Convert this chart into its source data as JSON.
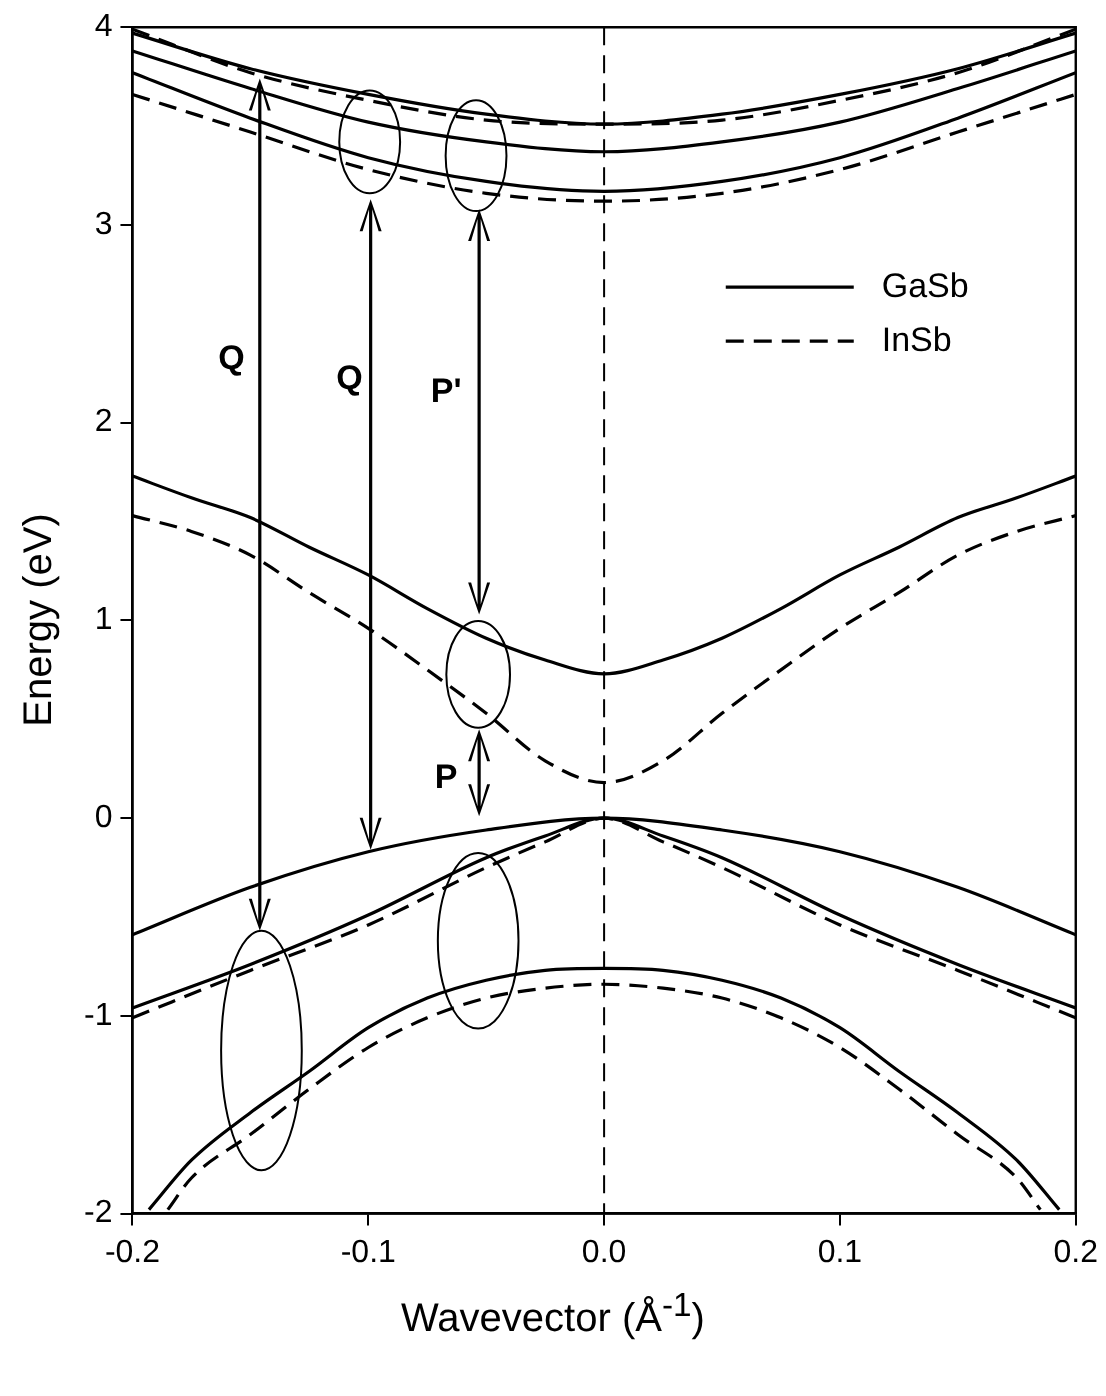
{
  "chart_data": {
    "type": "line",
    "xlabel": "Wavevector (Å$^{-1}$)",
    "ylabel": "Energy (eV)",
    "xlim": [
      -0.2,
      0.2
    ],
    "xticks": [
      -0.2,
      -0.1,
      {
        "value": 0,
        "label": "0.0"
      },
      0.1,
      0.2
    ],
    "ylim": [
      -2,
      4
    ],
    "yticks": [
      -2,
      -1,
      0,
      1,
      2,
      3,
      4
    ],
    "grid": false,
    "legend": "top right",
    "ref_lines": [
      {
        "axis": "x",
        "value": 0,
        "color": "#000000",
        "line_style": "dashed"
      }
    ],
    "annotations": [
      "Q",
      "Q",
      "P'",
      "P"
    ],
    "series": [
      {
        "name": "GaSb",
        "color": "#000000",
        "line_style": "solid",
        "x": [
          -0.2,
          -0.175,
          -0.15,
          -0.125,
          -0.1,
          -0.075,
          -0.05,
          -0.025,
          0,
          0.025,
          0.05,
          0.075,
          0.1,
          0.125,
          0.15,
          0.175,
          0.2
        ],
        "values": [
          1.73,
          1.62,
          1.52,
          1.37,
          1.23,
          1.06,
          0.91,
          0.8,
          0.73,
          0.8,
          0.91,
          1.06,
          1.23,
          1.37,
          1.52,
          1.62,
          1.73
        ]
      },
      {
        "color": "#000000",
        "line_style": "solid",
        "x": [
          -0.2,
          -0.15,
          -0.1,
          -0.05,
          0,
          0.05,
          0.1,
          0.15,
          0.2
        ],
        "values": [
          -0.59,
          -0.35,
          -0.17,
          -0.06,
          0,
          -0.06,
          -0.17,
          -0.35,
          -0.59
        ]
      },
      {
        "color": "#000000",
        "line_style": "solid",
        "x": [
          -0.2,
          -0.15,
          -0.1,
          -0.05,
          -0.025,
          0,
          0.025,
          0.05,
          0.1,
          0.15,
          0.2
        ],
        "values": [
          -0.96,
          -0.74,
          -0.49,
          -0.2,
          -0.09,
          0,
          -0.09,
          -0.2,
          -0.49,
          -0.74,
          -0.96
        ]
      },
      {
        "color": "#000000",
        "line_style": "solid",
        "x": [
          -0.193,
          -0.175,
          -0.15,
          -0.125,
          -0.1,
          -0.075,
          -0.05,
          -0.025,
          0,
          0.025,
          0.05,
          0.075,
          0.1,
          0.125,
          0.15,
          0.175,
          0.193
        ],
        "values": [
          -1.98,
          -1.73,
          -1.49,
          -1.28,
          -1.06,
          -0.91,
          -0.82,
          -0.77,
          -0.76,
          -0.77,
          -0.82,
          -0.91,
          -1.06,
          -1.28,
          -1.49,
          -1.73,
          -1.98
        ]
      },
      {
        "color": "#000000",
        "line_style": "solid",
        "x": [
          -0.2,
          -0.15,
          -0.1,
          -0.05,
          0,
          0.05,
          0.1,
          0.15,
          0.2
        ],
        "values": [
          3.97,
          3.79,
          3.66,
          3.56,
          3.51,
          3.56,
          3.66,
          3.79,
          3.97
        ]
      },
      {
        "color": "#000000",
        "line_style": "solid",
        "x": [
          -0.2,
          -0.15,
          -0.1,
          -0.05,
          0,
          0.05,
          0.1,
          0.15,
          0.2
        ],
        "values": [
          3.88,
          3.69,
          3.52,
          3.42,
          3.37,
          3.42,
          3.52,
          3.69,
          3.88
        ]
      },
      {
        "color": "#000000",
        "line_style": "solid",
        "x": [
          -0.2,
          -0.15,
          -0.1,
          -0.05,
          0,
          0.05,
          0.1,
          0.15,
          0.2
        ],
        "values": [
          3.77,
          3.54,
          3.34,
          3.22,
          3.17,
          3.22,
          3.34,
          3.54,
          3.77
        ]
      },
      {
        "name": "InSb",
        "color": "#000000",
        "line_style": "dashed",
        "x": [
          -0.2,
          -0.175,
          -0.15,
          -0.125,
          -0.1,
          -0.075,
          -0.05,
          -0.025,
          0,
          0.025,
          0.05,
          0.075,
          0.1,
          0.125,
          0.15,
          0.175,
          0.2
        ],
        "values": [
          1.53,
          1.45,
          1.33,
          1.14,
          0.96,
          0.75,
          0.53,
          0.29,
          0.18,
          0.29,
          0.53,
          0.75,
          0.96,
          1.14,
          1.33,
          1.45,
          1.53
        ]
      },
      {
        "color": "#000000",
        "line_style": "dashed",
        "x": [
          -0.2,
          -0.15,
          -0.1,
          -0.05,
          -0.025,
          0,
          0.025,
          0.05,
          0.1,
          0.15,
          0.2
        ],
        "values": [
          -1.01,
          -0.77,
          -0.54,
          -0.25,
          -0.12,
          0,
          -0.12,
          -0.25,
          -0.54,
          -0.77,
          -1.01
        ]
      },
      {
        "color": "#000000",
        "line_style": "dashed",
        "x": [
          -0.185,
          -0.175,
          -0.15,
          -0.125,
          -0.1,
          -0.075,
          -0.05,
          -0.025,
          0,
          0.025,
          0.05,
          0.075,
          0.1,
          0.125,
          0.15,
          0.175,
          0.185
        ],
        "values": [
          -1.98,
          -1.82,
          -1.6,
          -1.37,
          -1.16,
          -1.01,
          -0.91,
          -0.86,
          -0.84,
          -0.86,
          -0.91,
          -1.01,
          -1.16,
          -1.37,
          -1.6,
          -1.82,
          -1.98
        ]
      },
      {
        "color": "#000000",
        "line_style": "dashed",
        "x": [
          -0.2,
          -0.15,
          -0.1,
          -0.05,
          0,
          0.05,
          0.1,
          0.15,
          0.2
        ],
        "values": [
          3.99,
          3.77,
          3.63,
          3.53,
          3.51,
          3.53,
          3.63,
          3.77,
          3.99
        ]
      },
      {
        "color": "#000000",
        "line_style": "dashed",
        "x": [
          -0.2,
          -0.15,
          -0.1,
          -0.05,
          0,
          0.05,
          0.1,
          0.15,
          0.2
        ],
        "values": [
          3.66,
          3.47,
          3.28,
          3.16,
          3.12,
          3.16,
          3.28,
          3.47,
          3.66
        ]
      }
    ]
  }
}
